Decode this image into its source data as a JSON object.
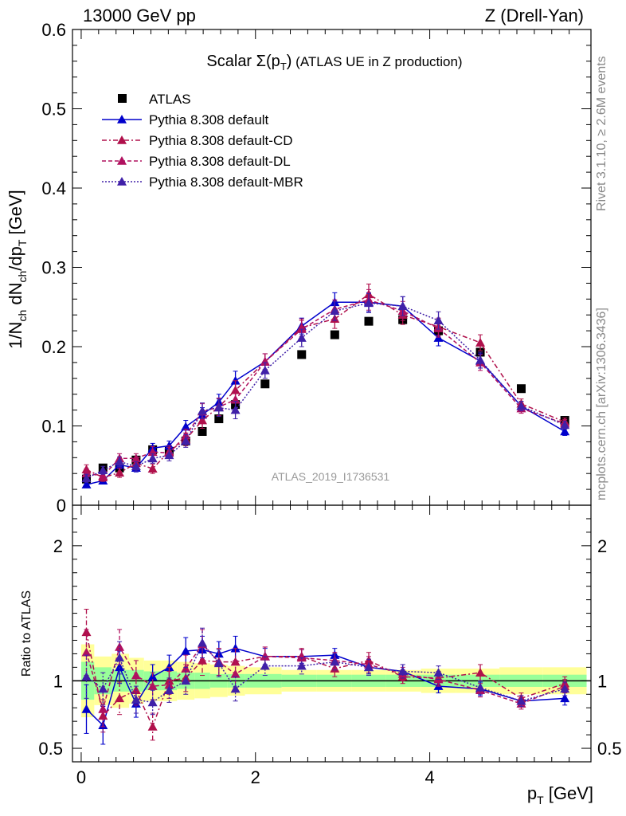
{
  "header": {
    "left": "13000 GeV pp",
    "right": "Z (Drell-Yan)",
    "title_main": "Scalar Σ(p",
    "title_sub": "T",
    "title_close": ")",
    "title_rest": " (ATLAS UE in Z production)"
  },
  "side_labels": {
    "rivet": "Rivet 3.1.10, ≥ 2.6M events",
    "mcplots": "mcplots.cern.ch [arXiv:1306.3436]"
  },
  "watermark": "ATLAS_2019_I1736531",
  "ylabel_top": "1/N_ch dN_ch/dp_T [GeV]",
  "ylabel_bottom": "Ratio to ATLAS",
  "xlabel": "p_T [GeV]",
  "chart_data": [
    {
      "type": "scatter",
      "panel": "main",
      "xlim": [
        -0.1,
        5.85
      ],
      "ylim": [
        0,
        0.6
      ],
      "yticks": [
        "0",
        "0.1",
        "0.2",
        "0.3",
        "0.4",
        "0.5",
        "0.6"
      ],
      "ytick_values": [
        0,
        0.1,
        0.2,
        0.3,
        0.4,
        0.5,
        0.6
      ],
      "legend_position": "top-left",
      "x": [
        0.06,
        0.25,
        0.44,
        0.63,
        0.82,
        1.01,
        1.2,
        1.39,
        1.58,
        1.77,
        2.11,
        2.53,
        2.91,
        3.3,
        3.69,
        4.1,
        4.58,
        5.05,
        5.55
      ],
      "series": [
        {
          "name": "ATLAS",
          "color": "#000000",
          "marker": "square",
          "line": "none",
          "values": [
            0.033,
            0.047,
            0.047,
            0.057,
            0.07,
            0.068,
            0.081,
            0.093,
            0.109,
            0.127,
            0.153,
            0.19,
            0.215,
            0.232,
            0.234,
            0.22,
            0.193,
            0.147,
            0.107
          ],
          "errors": [
            0,
            0,
            0,
            0,
            0,
            0,
            0,
            0,
            0,
            0,
            0,
            0,
            0,
            0,
            0,
            0,
            0,
            0,
            0
          ]
        },
        {
          "name": "Pythia 8.308 default",
          "color": "#0000cc",
          "marker": "triangle",
          "line": "solid",
          "values": [
            0.026,
            0.031,
            0.051,
            0.047,
            0.072,
            0.075,
            0.099,
            0.114,
            0.13,
            0.157,
            0.181,
            0.226,
            0.256,
            0.256,
            0.251,
            0.211,
            0.182,
            0.125,
            0.093
          ],
          "errors": [
            0.004,
            0.004,
            0.005,
            0.005,
            0.006,
            0.006,
            0.008,
            0.009,
            0.01,
            0.012,
            0.01,
            0.01,
            0.012,
            0.012,
            0.012,
            0.01,
            0.009,
            0.006,
            0.005
          ]
        },
        {
          "name": "Pythia 8.308 default-CD",
          "color": "#b0104b",
          "marker": "triangle",
          "line": "dashdot",
          "values": [
            0.045,
            0.035,
            0.041,
            0.053,
            0.046,
            0.068,
            0.083,
            0.107,
            0.124,
            0.145,
            0.181,
            0.224,
            0.235,
            0.266,
            0.24,
            0.225,
            0.205,
            0.128,
            0.105
          ],
          "errors": [
            0.006,
            0.005,
            0.006,
            0.006,
            0.006,
            0.007,
            0.008,
            0.01,
            0.011,
            0.012,
            0.01,
            0.011,
            0.012,
            0.013,
            0.012,
            0.011,
            0.01,
            0.006,
            0.005
          ]
        },
        {
          "name": "Pythia 8.308 default-DL",
          "color": "#b0105f",
          "marker": "triangle",
          "line": "dashed",
          "values": [
            0.04,
            0.037,
            0.059,
            0.059,
            0.067,
            0.066,
            0.088,
            0.118,
            0.124,
            0.133,
            0.181,
            0.222,
            0.247,
            0.259,
            0.245,
            0.223,
            0.18,
            0.122,
            0.103
          ],
          "errors": [
            0.006,
            0.005,
            0.006,
            0.006,
            0.007,
            0.007,
            0.008,
            0.01,
            0.011,
            0.012,
            0.01,
            0.011,
            0.012,
            0.013,
            0.012,
            0.011,
            0.01,
            0.006,
            0.005
          ]
        },
        {
          "name": "Pythia 8.308 default-MBR",
          "color": "#4020a8",
          "marker": "triangle",
          "line": "dotted",
          "values": [
            0.034,
            0.044,
            0.055,
            0.049,
            0.059,
            0.063,
            0.081,
            0.119,
            0.123,
            0.12,
            0.17,
            0.211,
            0.245,
            0.255,
            0.251,
            0.233,
            0.183,
            0.125,
            0.101
          ],
          "errors": [
            0.005,
            0.005,
            0.006,
            0.006,
            0.006,
            0.007,
            0.008,
            0.01,
            0.011,
            0.011,
            0.01,
            0.011,
            0.012,
            0.012,
            0.012,
            0.011,
            0.01,
            0.006,
            0.005
          ]
        }
      ]
    },
    {
      "type": "scatter",
      "panel": "ratio",
      "xlim": [
        -0.1,
        5.85
      ],
      "ylim": [
        0.4,
        2.3
      ],
      "yticks": [
        "0.5",
        "1",
        "2"
      ],
      "ytick_values": [
        0.5,
        1,
        2
      ],
      "xticks": [
        "0",
        "2",
        "4"
      ],
      "xtick_values": [
        0,
        2,
        4
      ],
      "x": [
        0.06,
        0.25,
        0.44,
        0.63,
        0.82,
        1.01,
        1.2,
        1.39,
        1.58,
        1.77,
        2.11,
        2.53,
        2.91,
        3.3,
        3.69,
        4.1,
        4.58,
        5.05,
        5.55
      ],
      "band_edges": [
        0.0,
        0.15,
        0.35,
        0.55,
        0.72,
        0.92,
        1.1,
        1.3,
        1.48,
        1.68,
        1.88,
        2.3,
        2.7,
        3.1,
        3.5,
        3.9,
        4.3,
        4.8,
        5.3,
        5.8
      ],
      "band_inner": [
        0.14,
        0.1,
        0.08,
        0.08,
        0.07,
        0.07,
        0.06,
        0.06,
        0.05,
        0.05,
        0.05,
        0.045,
        0.045,
        0.045,
        0.045,
        0.045,
        0.045,
        0.045,
        0.045
      ],
      "band_outer": [
        0.27,
        0.18,
        0.2,
        0.17,
        0.15,
        0.15,
        0.14,
        0.13,
        0.12,
        0.11,
        0.1,
        0.08,
        0.08,
        0.08,
        0.08,
        0.09,
        0.09,
        0.1,
        0.1
      ],
      "series": [
        {
          "name": "Pythia 8.308 default",
          "color": "#0000cc",
          "line": "solid",
          "values": [
            0.79,
            0.67,
            1.1,
            0.83,
            1.03,
            1.1,
            1.22,
            1.23,
            1.2,
            1.24,
            1.18,
            1.18,
            1.19,
            1.1,
            1.07,
            0.96,
            0.94,
            0.85,
            0.87
          ],
          "errors": [
            0.18,
            0.14,
            0.12,
            0.1,
            0.09,
            0.09,
            0.1,
            0.1,
            0.09,
            0.09,
            0.06,
            0.05,
            0.05,
            0.05,
            0.05,
            0.05,
            0.05,
            0.04,
            0.05
          ]
        },
        {
          "name": "Pythia 8.308 default-CD",
          "color": "#b0104b",
          "line": "dashdot",
          "values": [
            1.36,
            0.74,
            0.87,
            0.93,
            0.66,
            1.0,
            1.02,
            1.15,
            1.14,
            1.14,
            1.18,
            1.18,
            1.09,
            1.15,
            1.03,
            1.02,
            1.06,
            0.87,
            0.98
          ],
          "errors": [
            0.17,
            0.12,
            0.12,
            0.11,
            0.1,
            0.1,
            0.1,
            0.11,
            0.1,
            0.1,
            0.07,
            0.06,
            0.06,
            0.06,
            0.05,
            0.05,
            0.06,
            0.04,
            0.05
          ]
        },
        {
          "name": "Pythia 8.308 default-DL",
          "color": "#b0105f",
          "line": "dashed",
          "values": [
            1.21,
            0.79,
            1.25,
            1.04,
            0.96,
            0.97,
            1.09,
            1.27,
            1.14,
            1.05,
            1.18,
            1.17,
            1.15,
            1.12,
            1.05,
            1.01,
            0.93,
            0.83,
            0.96
          ],
          "errors": [
            0.17,
            0.13,
            0.13,
            0.11,
            0.1,
            0.1,
            0.1,
            0.11,
            0.1,
            0.1,
            0.07,
            0.06,
            0.06,
            0.06,
            0.05,
            0.05,
            0.05,
            0.04,
            0.05
          ]
        },
        {
          "name": "Pythia 8.308 default-MBR",
          "color": "#4020a8",
          "line": "dotted",
          "values": [
            1.03,
            0.94,
            1.17,
            0.86,
            0.84,
            0.93,
            1.0,
            1.28,
            1.13,
            0.94,
            1.11,
            1.11,
            1.14,
            1.1,
            1.07,
            1.06,
            0.95,
            0.85,
            0.94
          ],
          "errors": [
            0.16,
            0.12,
            0.12,
            0.1,
            0.09,
            0.09,
            0.1,
            0.11,
            0.1,
            0.09,
            0.07,
            0.06,
            0.06,
            0.06,
            0.05,
            0.05,
            0.05,
            0.04,
            0.05
          ]
        }
      ]
    }
  ]
}
